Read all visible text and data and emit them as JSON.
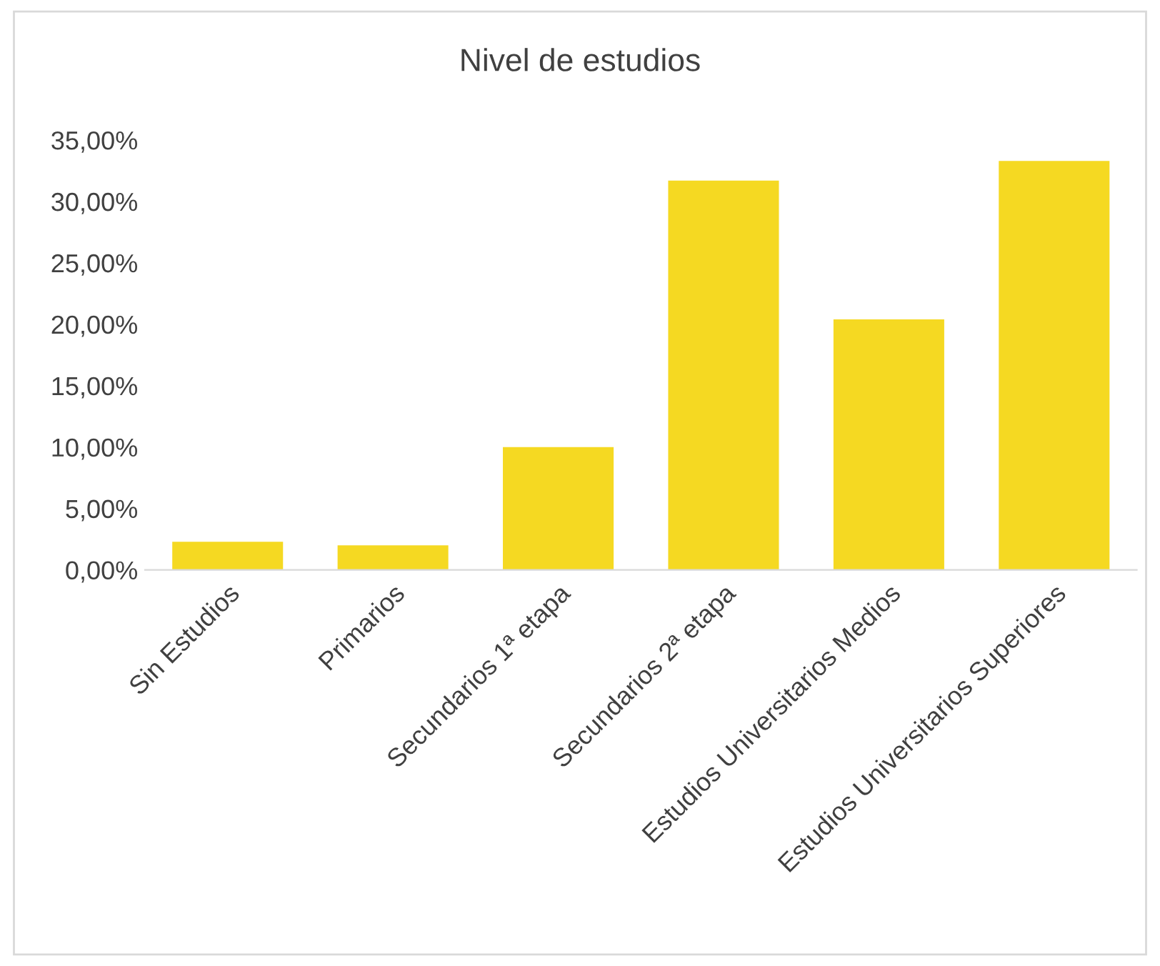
{
  "chart_data": {
    "type": "bar",
    "title": "Nivel de estudios",
    "categories": [
      "Sin Estudios",
      "Primarios",
      "Secundarios 1ª etapa",
      "Secundarios 2ª etapa",
      "Estudios Universitarios Medios",
      "Estudios Universitarios Superiores"
    ],
    "values": [
      2.3,
      2.0,
      10.0,
      31.7,
      20.4,
      33.3
    ],
    "color": "#f5d922",
    "ylim": [
      0,
      35
    ],
    "yticks": [
      {
        "value": 0,
        "label": "0,00%"
      },
      {
        "value": 5,
        "label": "5,00%"
      },
      {
        "value": 10,
        "label": "10,00%"
      },
      {
        "value": 15,
        "label": "15,00%"
      },
      {
        "value": 20,
        "label": "20,00%"
      },
      {
        "value": 25,
        "label": "25,00%"
      },
      {
        "value": 30,
        "label": "30,00%"
      },
      {
        "value": 35,
        "label": "35,00%"
      }
    ],
    "grid": false,
    "legend": false
  }
}
